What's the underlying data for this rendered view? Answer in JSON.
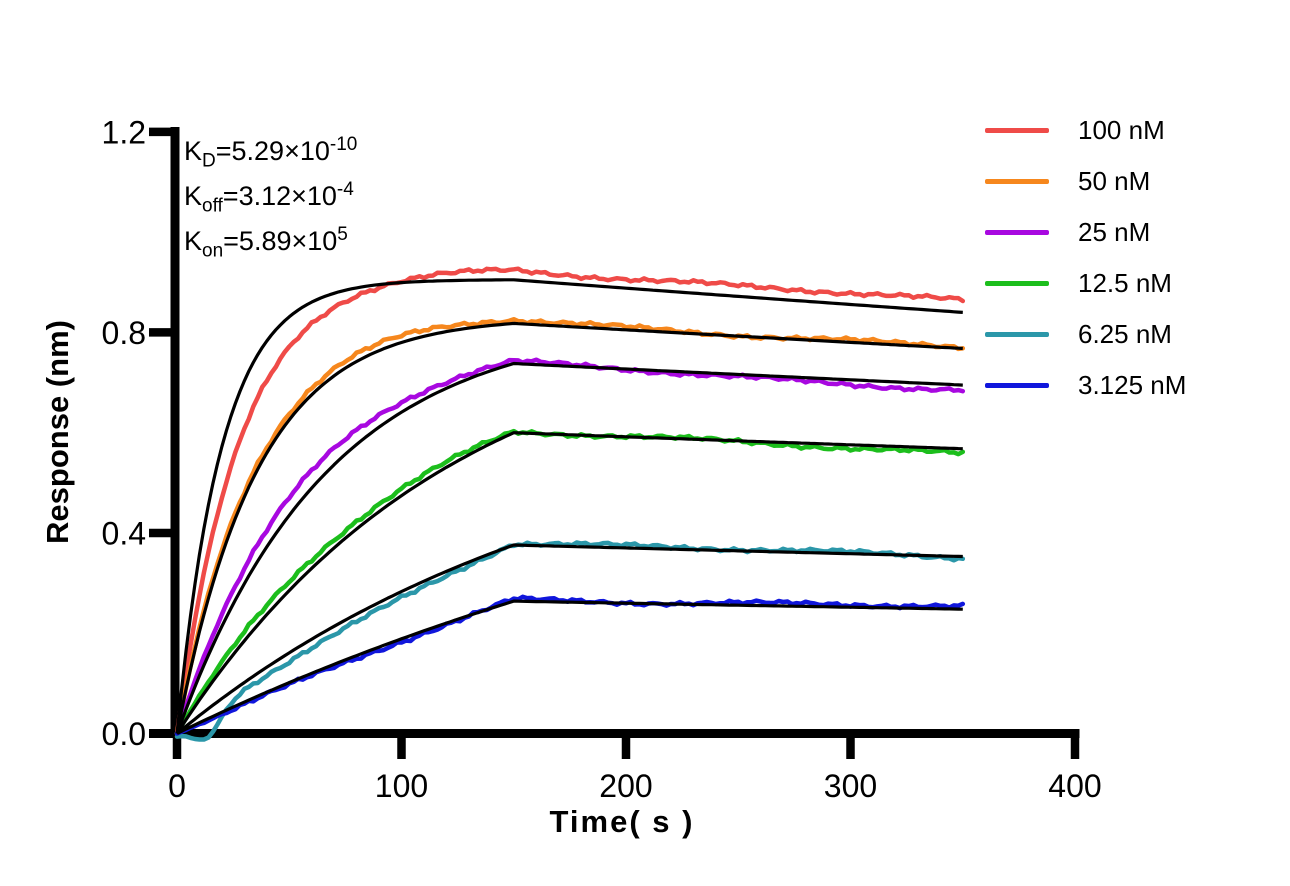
{
  "kinetics": {
    "lines": [
      {
        "base": "K",
        "sub": "D",
        "value": "=5.29×10",
        "exp": "-10"
      },
      {
        "base": "K",
        "sub": "off",
        "value": "=3.12×10",
        "exp": "-4"
      },
      {
        "base": "K",
        "sub": "on",
        "value": "=5.89×10",
        "exp": "5"
      }
    ]
  },
  "chart_data": {
    "type": "line",
    "title": "",
    "xlabel": "Time( s )",
    "ylabel": "Response (nm)",
    "xlim": [
      0,
      400
    ],
    "ylim": [
      0,
      1.2
    ],
    "x_ticks": [
      0,
      100,
      200,
      300,
      400
    ],
    "x_tick_labels": [
      "0",
      "100",
      "200",
      "300",
      "400"
    ],
    "y_ticks": [
      0.0,
      0.4,
      0.8,
      1.2
    ],
    "y_tick_labels": [
      "0.0",
      "0.4",
      "0.8",
      "1.2"
    ],
    "grid": false,
    "legend_position": "top-right-outside",
    "axis_color": "#000000",
    "fit_color": "#000000",
    "association_end_s": 150,
    "curve_end_s": 350,
    "description": "Biolayer interferometry binding kinetics: colored noisy traces are measured data for six analyte concentrations rising during association (0-150 s, peak value 'peak' in nm) and decaying during dissociation (150-350 s, final value 'end' in nm); smooth black curves are 1:1 model fits.",
    "series": [
      {
        "name": "100 nM",
        "color": "#EF4B48",
        "data": {
          "k_assoc": 0.035,
          "peak": 0.925,
          "end": 0.862
        },
        "fit": {
          "k_assoc": 0.05,
          "peak": 0.905,
          "end": 0.84
        }
      },
      {
        "name": "50 nM",
        "color": "#F6871D",
        "data": {
          "k_assoc": 0.029,
          "peak": 0.825,
          "end": 0.77
        },
        "fit": {
          "k_assoc": 0.028,
          "peak": 0.818,
          "end": 0.768
        }
      },
      {
        "name": "25 nM",
        "color": "#A808E0",
        "data": {
          "k_assoc": 0.018,
          "peak": 0.74,
          "end": 0.685
        },
        "fit": {
          "k_assoc": 0.015,
          "peak": 0.738,
          "end": 0.695
        }
      },
      {
        "name": "12.5 nM",
        "color": "#1CBE1C",
        "data": {
          "k_assoc": 0.01,
          "peak": 0.602,
          "end": 0.56
        },
        "fit": {
          "k_assoc": 0.0082,
          "peak": 0.6,
          "end": 0.568
        }
      },
      {
        "name": "6.25 nM",
        "color": "#2B97A9",
        "data": {
          "k_assoc": 0.0025,
          "peak": 0.382,
          "end": 0.352,
          "start_dip": {
            "amp": 0.05,
            "center": 13,
            "width": 9
          }
        },
        "fit": {
          "k_assoc": 0.0055,
          "peak": 0.376,
          "end": 0.353
        }
      },
      {
        "name": "3.125 nM",
        "color": "#1016DC",
        "data": {
          "k_assoc": 0.001,
          "peak": 0.268,
          "end": 0.252
        },
        "fit": {
          "k_assoc": 0.003,
          "peak": 0.264,
          "end": 0.248
        }
      }
    ]
  }
}
